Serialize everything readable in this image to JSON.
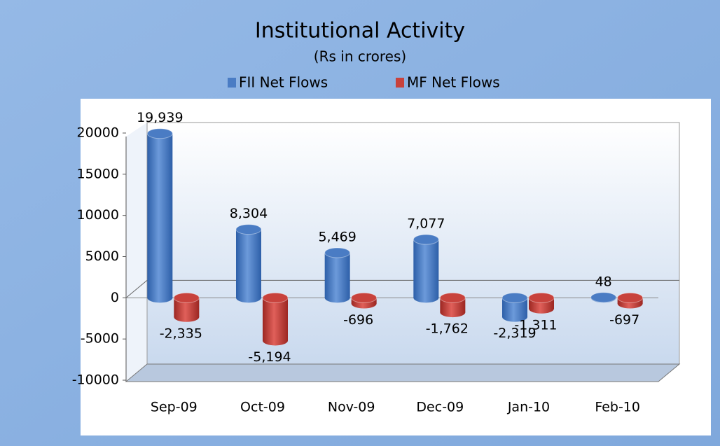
{
  "chart_data": {
    "type": "bar",
    "title": "Institutional Activity",
    "subtitle": "(Rs in crores)",
    "categories": [
      "Sep-09",
      "Oct-09",
      "Nov-09",
      "Dec-09",
      "Jan-10",
      "Feb-10"
    ],
    "series": [
      {
        "name": "FII Net Flows",
        "color": "#4a7cc4",
        "values": [
          19939,
          8304,
          5469,
          7077,
          -2319,
          48
        ],
        "value_labels": [
          "19,939",
          "8,304",
          "5,469",
          "7,077",
          "-2,319",
          "48"
        ]
      },
      {
        "name": "MF Net Flows",
        "color": "#c8423c",
        "values": [
          -2335,
          -5194,
          -696,
          -1762,
          -1311,
          -697
        ],
        "value_labels": [
          "-2,335",
          "-5,194",
          "-696",
          "-1,762",
          "-1,311",
          "-697"
        ]
      }
    ],
    "ylim": [
      -10000,
      20000
    ],
    "yticks": [
      20000,
      15000,
      10000,
      5000,
      0,
      -5000,
      -10000
    ]
  }
}
